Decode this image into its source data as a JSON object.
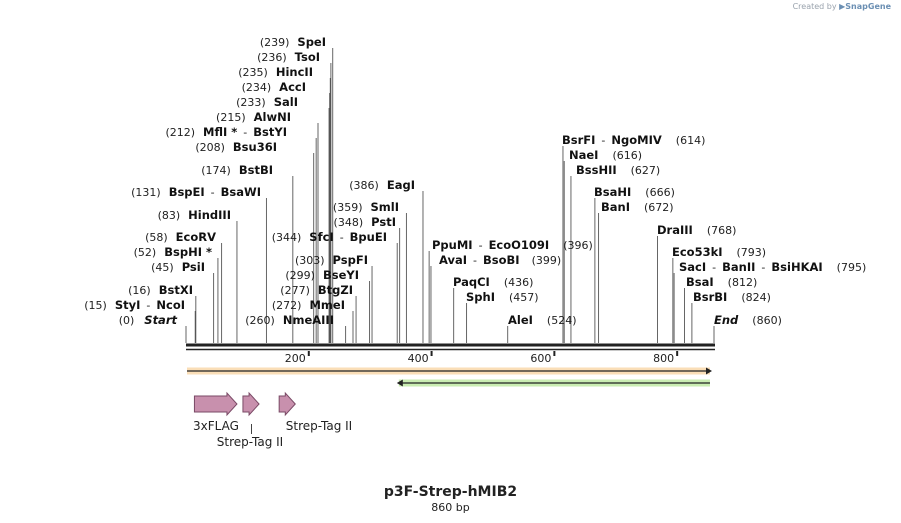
{
  "watermark": {
    "prefix": "Created by",
    "brand": "SnapGene"
  },
  "plasmid": {
    "name": "p3F-Strep-hMIB2",
    "length_label": "860 bp",
    "length": 860
  },
  "ruler": {
    "ticks": [
      {
        "label": "200",
        "value": 200
      },
      {
        "label": "400",
        "value": 400
      },
      {
        "label": "600",
        "value": 600
      },
      {
        "label": "800",
        "value": 800
      }
    ]
  },
  "colors": {
    "orf_forward": "#f0a030",
    "orf_reverse": "#66cc22",
    "feature_fill": "#c890ad",
    "feature_stroke": "#7a4a66",
    "backbone": "#222222"
  },
  "orfs": [
    {
      "name": "forward ORF",
      "start": 0,
      "end": 860,
      "direction": "forward",
      "color": "#f0a030"
    },
    {
      "name": "reverse ORF",
      "start": 345,
      "end": 860,
      "direction": "reverse",
      "color": "#66cc22"
    }
  ],
  "features": [
    {
      "name": "3xFLAG",
      "start": 17,
      "end": 83
    },
    {
      "name": "Strep-Tag II",
      "start": 96,
      "end": 119
    },
    {
      "name": "Strep-Tag II",
      "start": 155,
      "end": 178
    }
  ],
  "sites": [
    {
      "pos": "(239)",
      "names": [
        "SpeI"
      ],
      "bp": [
        239
      ],
      "star": false
    },
    {
      "pos": "(236)",
      "names": [
        "TsoI"
      ],
      "bp": [
        236
      ],
      "star": false
    },
    {
      "pos": "(235)",
      "names": [
        "HincII"
      ],
      "bp": [
        235
      ],
      "star": false
    },
    {
      "pos": "(234)",
      "names": [
        "AccI"
      ],
      "bp": [
        234
      ],
      "star": false
    },
    {
      "pos": "(233)",
      "names": [
        "SalI"
      ],
      "bp": [
        233
      ],
      "star": false
    },
    {
      "pos": "(215)",
      "names": [
        "AlwNI"
      ],
      "bp": [
        215
      ],
      "star": false
    },
    {
      "pos": "(212)",
      "names": [
        "MflI *",
        "BstYI"
      ],
      "bp": [
        212
      ],
      "star": true
    },
    {
      "pos": "(208)",
      "names": [
        "Bsu36I"
      ],
      "bp": [
        208
      ],
      "star": false
    },
    {
      "pos": "(174)",
      "names": [
        "BstBI"
      ],
      "bp": [
        174
      ],
      "star": false
    },
    {
      "pos": "(131)",
      "names": [
        "BspEI",
        "BsaWI"
      ],
      "bp": [
        131
      ],
      "star": false
    },
    {
      "pos": "(83)",
      "names": [
        "HindIII"
      ],
      "bp": [
        83
      ],
      "star": false
    },
    {
      "pos": "(58)",
      "names": [
        "EcoRV"
      ],
      "bp": [
        58
      ],
      "star": false
    },
    {
      "pos": "(52)",
      "names": [
        "BspHI *"
      ],
      "bp": [
        52
      ],
      "star": true
    },
    {
      "pos": "(45)",
      "names": [
        "PsiI"
      ],
      "bp": [
        45
      ],
      "star": false
    },
    {
      "pos": "(16)",
      "names": [
        "BstXI"
      ],
      "bp": [
        16
      ],
      "star": false
    },
    {
      "pos": "(15)",
      "names": [
        "StyI",
        "NcoI"
      ],
      "bp": [
        15
      ],
      "star": false
    },
    {
      "pos": "(0)",
      "names": [
        "Start"
      ],
      "bp": [
        0
      ],
      "star": false
    },
    {
      "pos": "(386)",
      "names": [
        "EagI"
      ],
      "bp": [
        386
      ],
      "star": false
    },
    {
      "pos": "(359)",
      "names": [
        "SmlI"
      ],
      "bp": [
        359
      ],
      "star": false
    },
    {
      "pos": "(348)",
      "names": [
        "PstI"
      ],
      "bp": [
        348
      ],
      "star": false
    },
    {
      "pos": "(344)",
      "names": [
        "SfcI",
        "BpuEI"
      ],
      "bp": [
        344
      ],
      "star": false
    },
    {
      "pos": "(303)",
      "names": [
        "PspFI"
      ],
      "bp": [
        303
      ],
      "star": false
    },
    {
      "pos": "(299)",
      "names": [
        "BseYI"
      ],
      "bp": [
        299
      ],
      "star": false
    },
    {
      "pos": "(277)",
      "names": [
        "BtgZI"
      ],
      "bp": [
        277
      ],
      "star": false
    },
    {
      "pos": "(272)",
      "names": [
        "MmeI"
      ],
      "bp": [
        272
      ],
      "star": false
    },
    {
      "pos": "(260)",
      "names": [
        "NmeAIII"
      ],
      "bp": [
        260
      ],
      "star": false
    },
    {
      "pos": "(396)",
      "names": [
        "PpuMI",
        "EcoO109I"
      ],
      "bp": [
        396
      ],
      "star": false
    },
    {
      "pos": "(399)",
      "names": [
        "AvaI",
        "BsoBI"
      ],
      "bp": [
        399
      ],
      "star": false
    },
    {
      "pos": "(436)",
      "names": [
        "PaqCI"
      ],
      "bp": [
        436
      ],
      "star": false
    },
    {
      "pos": "(457)",
      "names": [
        "SphI"
      ],
      "bp": [
        457
      ],
      "star": false
    },
    {
      "pos": "(524)",
      "names": [
        "AleI"
      ],
      "bp": [
        524
      ],
      "star": false
    },
    {
      "pos": "(614)",
      "names": [
        "BsrFI",
        "NgoMIV"
      ],
      "bp": [
        614
      ],
      "star": false
    },
    {
      "pos": "(616)",
      "names": [
        "NaeI"
      ],
      "bp": [
        616
      ],
      "star": false
    },
    {
      "pos": "(627)",
      "names": [
        "BssHII"
      ],
      "bp": [
        627
      ],
      "star": false
    },
    {
      "pos": "(666)",
      "names": [
        "BsaHI"
      ],
      "bp": [
        666
      ],
      "star": false
    },
    {
      "pos": "(672)",
      "names": [
        "BanI"
      ],
      "bp": [
        672
      ],
      "star": false
    },
    {
      "pos": "(768)",
      "names": [
        "DraIII"
      ],
      "bp": [
        768
      ],
      "star": false
    },
    {
      "pos": "(793)",
      "names": [
        "Eco53kI"
      ],
      "bp": [
        793
      ],
      "star": false
    },
    {
      "pos": "(795)",
      "names": [
        "SacI",
        "BanII",
        "BsiHKAI"
      ],
      "bp": [
        795
      ],
      "star": false
    },
    {
      "pos": "(812)",
      "names": [
        "BsaI"
      ],
      "bp": [
        812
      ],
      "star": false
    },
    {
      "pos": "(824)",
      "names": [
        "BsrBI"
      ],
      "bp": [
        824
      ],
      "star": false
    },
    {
      "pos": "(860)",
      "names": [
        "End"
      ],
      "bp": [
        860
      ],
      "star": false
    }
  ]
}
